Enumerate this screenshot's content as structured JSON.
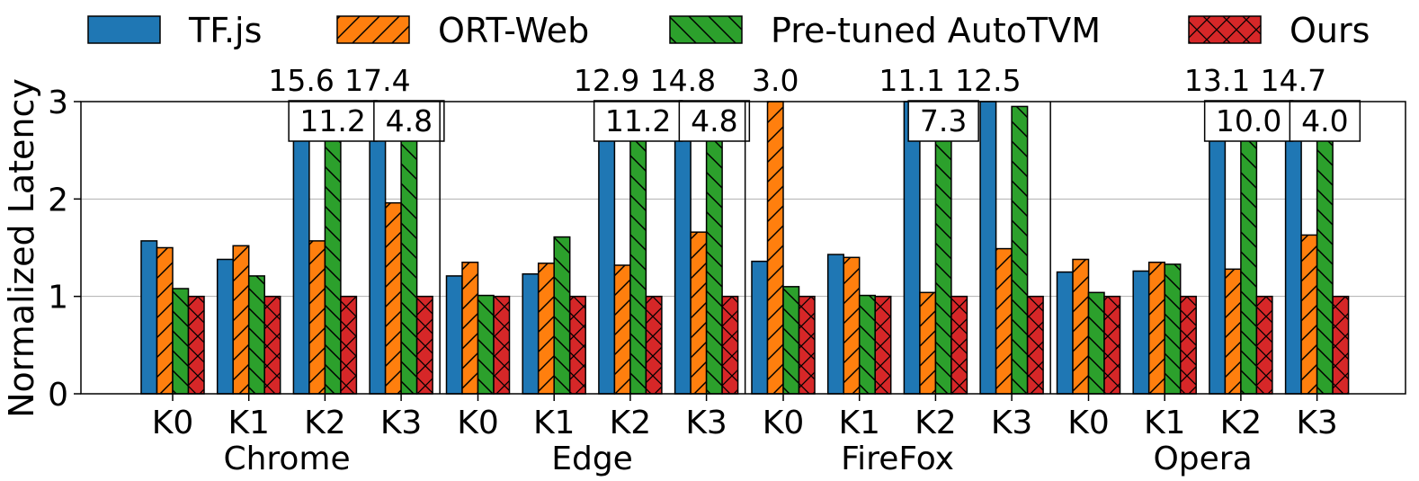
{
  "chart_data": {
    "type": "bar",
    "ylabel": "Normalized Latency",
    "ylim": [
      0,
      3
    ],
    "yticks": [
      "0",
      "1",
      "2",
      "3"
    ],
    "grid": "horizontal",
    "legend_position": "top",
    "groups": [
      "Chrome",
      "Edge",
      "FireFox",
      "Opera"
    ],
    "categories": [
      "K0",
      "K1",
      "K2",
      "K3"
    ],
    "series": [
      {
        "name": "TF.js",
        "color": "#1f77b4",
        "hatch": "none",
        "values": [
          [
            1.57,
            1.38,
            15.6,
            17.4
          ],
          [
            1.21,
            1.23,
            12.9,
            14.8
          ],
          [
            1.36,
            1.43,
            11.1,
            12.5
          ],
          [
            1.25,
            1.26,
            13.1,
            14.7
          ]
        ]
      },
      {
        "name": "ORT-Web",
        "color": "#ff7f0e",
        "hatch": "forward",
        "values": [
          [
            1.5,
            1.52,
            1.57,
            1.96
          ],
          [
            1.35,
            1.34,
            1.32,
            1.66
          ],
          [
            3.0,
            1.4,
            1.04,
            1.49
          ],
          [
            1.38,
            1.35,
            1.28,
            1.63
          ]
        ]
      },
      {
        "name": "Pre-tuned AutoTVM",
        "color": "#2ca02c",
        "hatch": "backward",
        "values": [
          [
            1.08,
            1.21,
            11.2,
            4.8
          ],
          [
            1.01,
            1.61,
            11.2,
            4.8
          ],
          [
            1.1,
            1.01,
            7.3,
            2.95
          ],
          [
            1.04,
            1.33,
            10.0,
            4.0
          ]
        ]
      },
      {
        "name": "Ours",
        "color": "#d62728",
        "hatch": "cross",
        "values": [
          [
            1.0,
            1.0,
            1.0,
            1.0
          ],
          [
            1.0,
            1.0,
            1.0,
            1.0
          ],
          [
            1.0,
            1.0,
            1.0,
            1.0
          ],
          [
            1.0,
            1.0,
            1.0,
            1.0
          ]
        ]
      }
    ],
    "overflow_labels": [
      {
        "text": "15.6",
        "group": 0,
        "category": 2,
        "series": 0,
        "boxed": false
      },
      {
        "text": "17.4",
        "group": 0,
        "category": 3,
        "series": 0,
        "boxed": false
      },
      {
        "text": "11.2",
        "group": 0,
        "category": 2,
        "series": 2,
        "boxed": true
      },
      {
        "text": "4.8",
        "group": 0,
        "category": 3,
        "series": 2,
        "boxed": true
      },
      {
        "text": "12.9",
        "group": 1,
        "category": 2,
        "series": 0,
        "boxed": false
      },
      {
        "text": "14.8",
        "group": 1,
        "category": 3,
        "series": 0,
        "boxed": false
      },
      {
        "text": "11.2",
        "group": 1,
        "category": 2,
        "series": 2,
        "boxed": true
      },
      {
        "text": "4.8",
        "group": 1,
        "category": 3,
        "series": 2,
        "boxed": true
      },
      {
        "text": "3.0",
        "group": 2,
        "category": 0,
        "series": 1,
        "boxed": false
      },
      {
        "text": "11.1",
        "group": 2,
        "category": 2,
        "series": 0,
        "boxed": false
      },
      {
        "text": "12.5",
        "group": 2,
        "category": 3,
        "series": 0,
        "boxed": false
      },
      {
        "text": "7.3",
        "group": 2,
        "category": 2,
        "series": 2,
        "boxed": true
      },
      {
        "text": "13.1",
        "group": 3,
        "category": 2,
        "series": 0,
        "boxed": false
      },
      {
        "text": "14.7",
        "group": 3,
        "category": 3,
        "series": 0,
        "boxed": false
      },
      {
        "text": "10.0",
        "group": 3,
        "category": 2,
        "series": 2,
        "boxed": true
      },
      {
        "text": "4.0",
        "group": 3,
        "category": 3,
        "series": 2,
        "boxed": true
      }
    ]
  }
}
